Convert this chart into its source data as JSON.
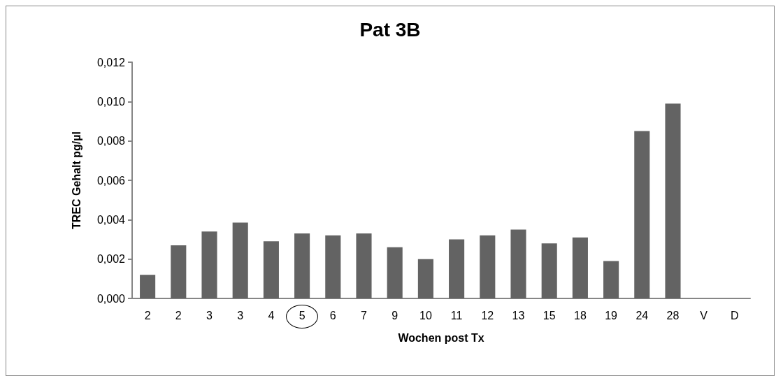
{
  "chart_data": {
    "type": "bar",
    "title": "Pat 3B",
    "xlabel": "Wochen post Tx",
    "ylabel": "TREC Gehalt pg/µl",
    "categories": [
      "2",
      "2",
      "3",
      "3",
      "4",
      "5",
      "6",
      "7",
      "9",
      "10",
      "11",
      "12",
      "13",
      "15",
      "18",
      "19",
      "24",
      "28",
      "V",
      "D"
    ],
    "values": [
      0.0012,
      0.0027,
      0.0034,
      0.00385,
      0.0029,
      0.0033,
      0.0032,
      0.0033,
      0.0026,
      0.002,
      0.003,
      0.0032,
      0.0035,
      0.0028,
      0.0031,
      0.0019,
      0.0085,
      0.0099,
      null,
      null
    ],
    "color": "#636363",
    "ylim": [
      0,
      0.012
    ],
    "yticks": [
      {
        "value": 0,
        "label": "0,000"
      },
      {
        "value": 0.002,
        "label": "0,002"
      },
      {
        "value": 0.004,
        "label": "0,004"
      },
      {
        "value": 0.006,
        "label": "0,006"
      },
      {
        "value": 0.008,
        "label": "0,008"
      },
      {
        "value": 0.01,
        "label": "0,010"
      },
      {
        "value": 0.012,
        "label": "0,012"
      }
    ],
    "grid": false
  }
}
